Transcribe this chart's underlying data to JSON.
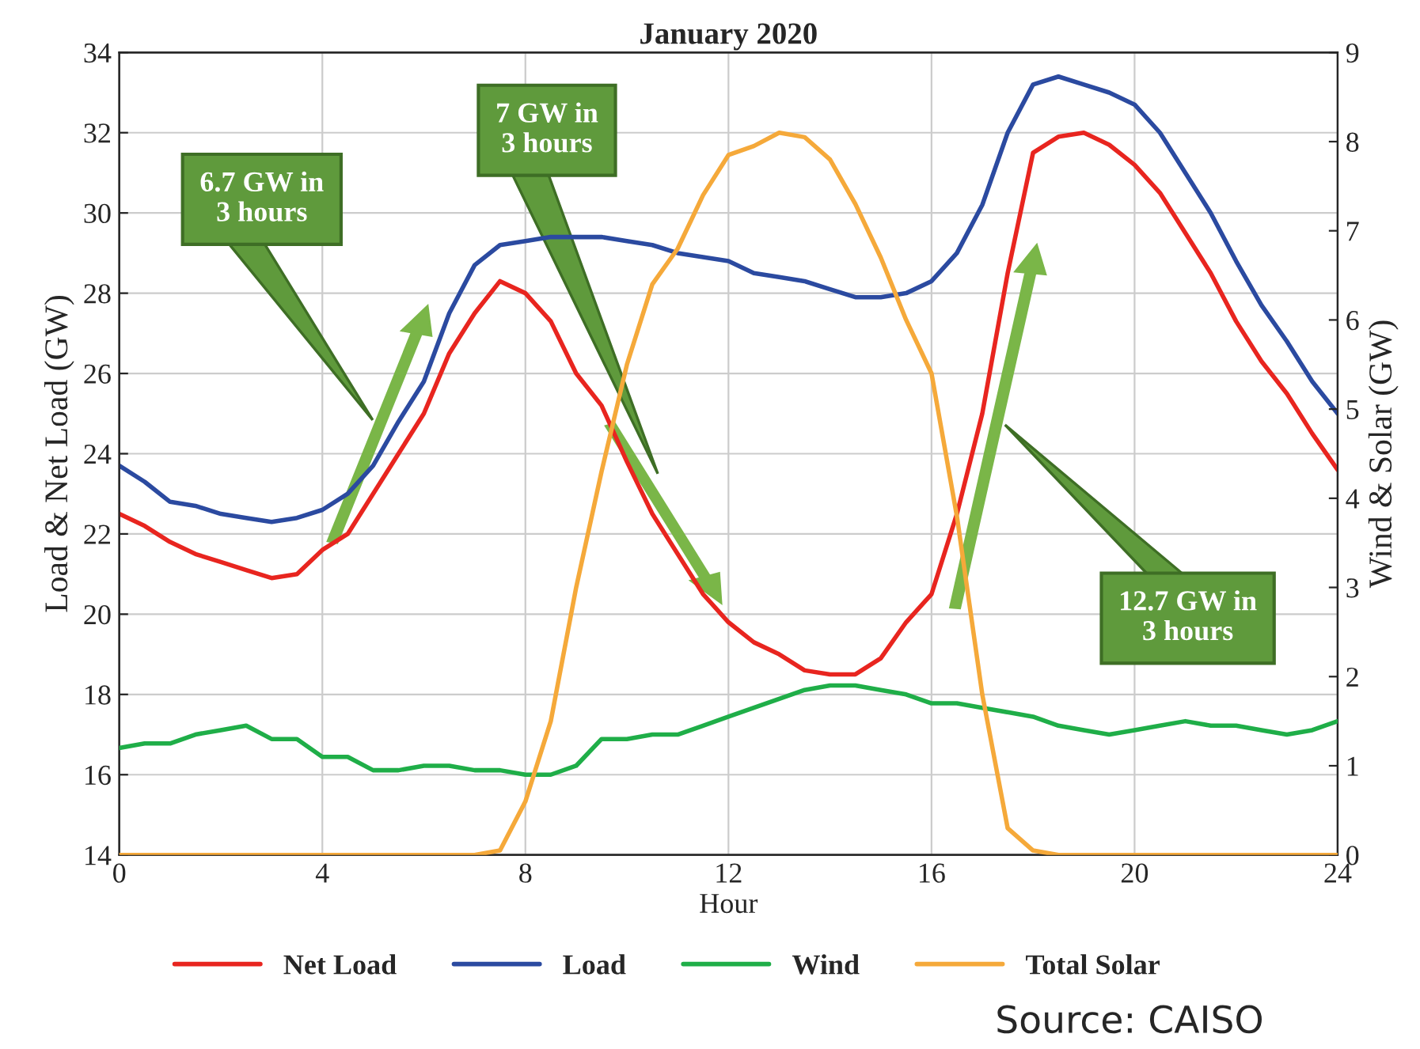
{
  "chart_data": {
    "type": "line",
    "title": "January 2020",
    "xlabel": "Hour",
    "ylabel": "Load & Net Load (GW)",
    "y2label": "Wind & Solar (GW)",
    "x": [
      0,
      0.5,
      1,
      1.5,
      2,
      2.5,
      3,
      3.5,
      4,
      4.5,
      5,
      5.5,
      6,
      6.5,
      7,
      7.5,
      8,
      8.5,
      9,
      9.5,
      10,
      10.5,
      11,
      11.5,
      12,
      12.5,
      13,
      13.5,
      14,
      14.5,
      15,
      15.5,
      16,
      16.5,
      17,
      17.5,
      18,
      18.5,
      19,
      19.5,
      20,
      20.5,
      21,
      21.5,
      22,
      22.5,
      23,
      23.5,
      24
    ],
    "series": [
      {
        "name": "Net Load",
        "color": "#e8251f",
        "values": [
          22.5,
          22.2,
          21.8,
          21.5,
          21.3,
          21.1,
          20.9,
          21.0,
          21.6,
          22.0,
          23.0,
          24.0,
          25.0,
          26.5,
          27.5,
          28.3,
          28.0,
          27.3,
          26.0,
          25.2,
          23.8,
          22.5,
          21.5,
          20.5,
          19.8,
          19.3,
          19.0,
          18.6,
          18.5,
          18.5,
          18.9,
          19.8,
          20.5,
          22.5,
          25.0,
          28.5,
          31.5,
          31.9,
          32.0,
          31.7,
          31.2,
          30.5,
          29.5,
          28.5,
          27.3,
          26.3,
          25.5,
          24.5,
          23.6
        ]
      },
      {
        "name": "Load",
        "color": "#2b4aa0",
        "values": [
          23.7,
          23.3,
          22.8,
          22.7,
          22.5,
          22.4,
          22.3,
          22.4,
          22.6,
          23.0,
          23.7,
          24.8,
          25.8,
          27.5,
          28.7,
          29.2,
          29.3,
          29.4,
          29.4,
          29.4,
          29.3,
          29.2,
          29.0,
          28.9,
          28.8,
          28.5,
          28.4,
          28.3,
          28.1,
          27.9,
          27.9,
          28.0,
          28.3,
          29.0,
          30.2,
          32.0,
          33.2,
          33.4,
          33.2,
          33.0,
          32.7,
          32.0,
          31.0,
          30.0,
          28.8,
          27.7,
          26.8,
          25.8,
          25.0
        ]
      },
      {
        "name": "Wind",
        "color": "#1fae48",
        "axis": "y2",
        "values": [
          1.2,
          1.25,
          1.25,
          1.35,
          1.4,
          1.45,
          1.3,
          1.3,
          1.1,
          1.1,
          0.95,
          0.95,
          1.0,
          1.0,
          0.95,
          0.95,
          0.9,
          0.9,
          1.0,
          1.3,
          1.3,
          1.35,
          1.35,
          1.45,
          1.55,
          1.65,
          1.75,
          1.85,
          1.9,
          1.9,
          1.85,
          1.8,
          1.7,
          1.7,
          1.65,
          1.6,
          1.55,
          1.45,
          1.4,
          1.35,
          1.4,
          1.45,
          1.5,
          1.45,
          1.45,
          1.4,
          1.35,
          1.4,
          1.5
        ]
      },
      {
        "name": "Total Solar",
        "color": "#f5a93a",
        "axis": "y2",
        "values": [
          0,
          0,
          0,
          0,
          0,
          0,
          0,
          0,
          0,
          0,
          0,
          0,
          0,
          0,
          0,
          0.05,
          0.6,
          1.5,
          3.0,
          4.3,
          5.5,
          6.4,
          6.8,
          7.4,
          7.85,
          7.95,
          8.1,
          8.05,
          7.8,
          7.3,
          6.7,
          6.0,
          5.4,
          3.8,
          1.8,
          0.3,
          0.05,
          0,
          0,
          0,
          0,
          0,
          0,
          0,
          0,
          0,
          0,
          0,
          0
        ]
      }
    ],
    "xlim": [
      0,
      24
    ],
    "xticks": [
      0,
      4,
      8,
      12,
      16,
      20,
      24
    ],
    "ylim": [
      14,
      34
    ],
    "yticks": [
      14,
      16,
      18,
      20,
      22,
      24,
      26,
      28,
      30,
      32,
      34
    ],
    "y2lim": [
      0,
      9
    ],
    "y2ticks": [
      0,
      1,
      2,
      3,
      4,
      5,
      6,
      7,
      8,
      9
    ],
    "grid": true,
    "legend": "bottom",
    "marker": "none",
    "line_style": "solid",
    "annotations": [
      "6.7 GW in\n3 hours",
      "7 GW in\n3 hours",
      "12.7 GW in\n3 hours",
      "Source: CAISO"
    ]
  }
}
